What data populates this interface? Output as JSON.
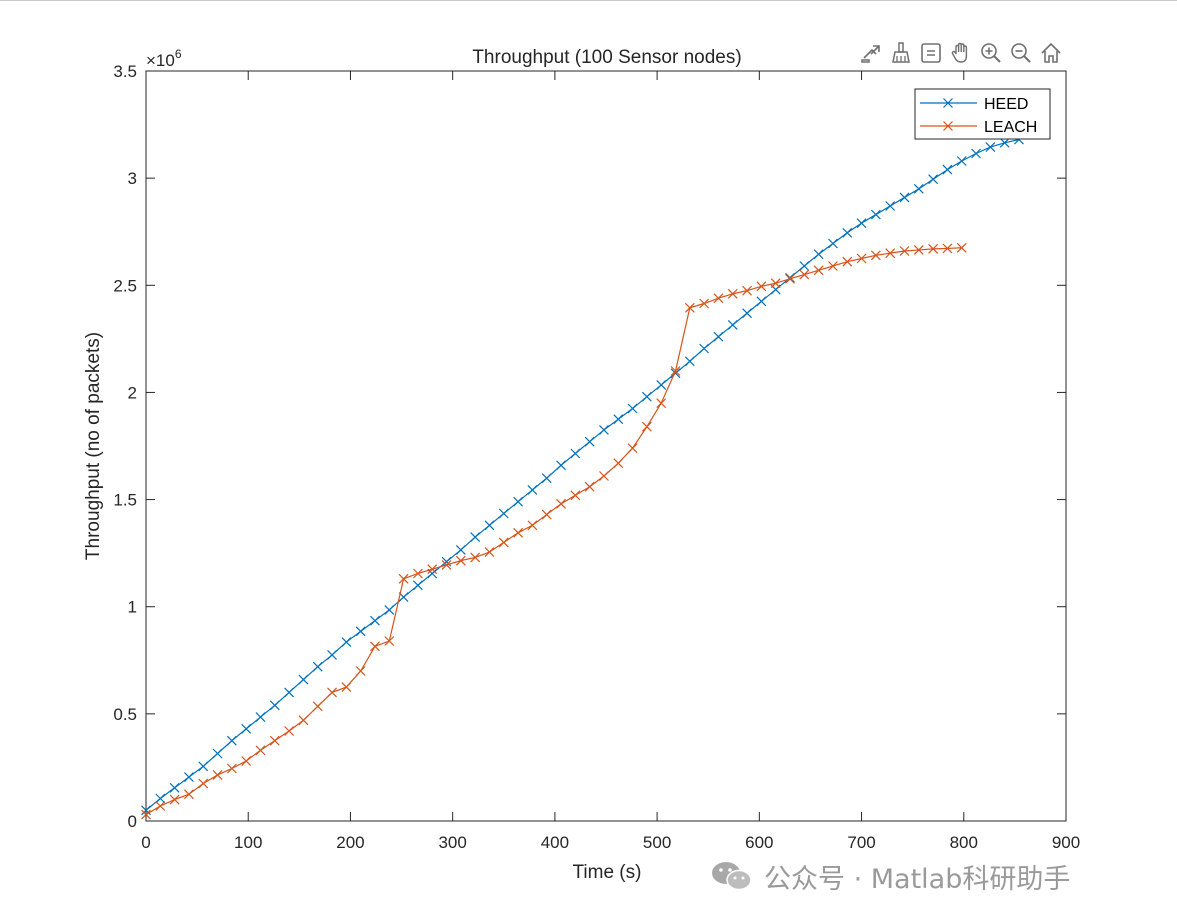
{
  "toolbar": {
    "icons": [
      "export-icon",
      "brush-icon",
      "datatip-icon",
      "pan-icon",
      "zoom-in-icon",
      "zoom-out-icon",
      "home-icon"
    ]
  },
  "watermark": {
    "text": "公众号 · Matlab科研助手"
  },
  "chart_data": {
    "type": "line",
    "title": "Throughput (100 Sensor nodes)",
    "xlabel": "Time (s)",
    "ylabel": "Throughput (no of packets)",
    "xlim": [
      0,
      900
    ],
    "ylim": [
      0,
      3500000
    ],
    "xticks": [
      0,
      100,
      200,
      300,
      400,
      500,
      600,
      700,
      800,
      900
    ],
    "yticks": [
      0,
      500000,
      1000000,
      1500000,
      2000000,
      2500000,
      3000000,
      3500000
    ],
    "ytick_labels": [
      "0",
      "0.5",
      "1",
      "1.5",
      "2",
      "2.5",
      "3",
      "3.5"
    ],
    "y_exponent_label": "×10",
    "y_exponent": "6",
    "grid": false,
    "box": true,
    "legend_position": "top-right",
    "marker": "x",
    "series": [
      {
        "name": "HEED",
        "color": "#0072BD",
        "x": [
          0,
          14,
          28,
          42,
          56,
          70,
          84,
          98,
          112,
          126,
          140,
          154,
          168,
          182,
          196,
          210,
          224,
          238,
          252,
          266,
          280,
          294,
          308,
          322,
          336,
          350,
          364,
          378,
          392,
          406,
          420,
          434,
          448,
          462,
          476,
          490,
          504,
          518,
          532,
          546,
          560,
          574,
          588,
          602,
          616,
          630,
          644,
          658,
          672,
          686,
          700,
          714,
          728,
          742,
          756,
          770,
          784,
          798,
          812,
          826,
          840,
          854
        ],
        "y": [
          50000,
          105000,
          155000,
          205000,
          255000,
          315000,
          375000,
          430000,
          485000,
          540000,
          600000,
          660000,
          720000,
          775000,
          835000,
          885000,
          935000,
          985000,
          1045000,
          1100000,
          1155000,
          1210000,
          1265000,
          1325000,
          1380000,
          1435000,
          1490000,
          1545000,
          1600000,
          1660000,
          1715000,
          1770000,
          1825000,
          1875000,
          1925000,
          1980000,
          2035000,
          2090000,
          2145000,
          2205000,
          2260000,
          2315000,
          2370000,
          2425000,
          2480000,
          2535000,
          2590000,
          2645000,
          2695000,
          2745000,
          2790000,
          2830000,
          2870000,
          2910000,
          2950000,
          2995000,
          3040000,
          3080000,
          3115000,
          3145000,
          3165000,
          3180000
        ]
      },
      {
        "name": "LEACH",
        "color": "#D95319",
        "x": [
          0,
          14,
          28,
          42,
          56,
          70,
          84,
          98,
          112,
          126,
          140,
          154,
          168,
          182,
          196,
          210,
          224,
          238,
          252,
          266,
          280,
          294,
          308,
          322,
          336,
          350,
          364,
          378,
          392,
          406,
          420,
          434,
          448,
          462,
          476,
          490,
          504,
          518,
          532,
          546,
          560,
          574,
          588,
          602,
          616,
          630,
          644,
          658,
          672,
          686,
          700,
          714,
          728,
          742,
          756,
          770,
          784,
          798
        ],
        "y": [
          30000,
          70000,
          100000,
          125000,
          175000,
          215000,
          245000,
          280000,
          330000,
          375000,
          420000,
          470000,
          535000,
          600000,
          625000,
          700000,
          815000,
          840000,
          1130000,
          1155000,
          1175000,
          1195000,
          1215000,
          1230000,
          1255000,
          1300000,
          1345000,
          1380000,
          1430000,
          1480000,
          1520000,
          1560000,
          1610000,
          1670000,
          1740000,
          1840000,
          1950000,
          2100000,
          2395000,
          2415000,
          2440000,
          2460000,
          2475000,
          2495000,
          2510000,
          2530000,
          2550000,
          2570000,
          2590000,
          2610000,
          2625000,
          2640000,
          2650000,
          2660000,
          2665000,
          2670000,
          2672000,
          2675000
        ]
      }
    ]
  }
}
